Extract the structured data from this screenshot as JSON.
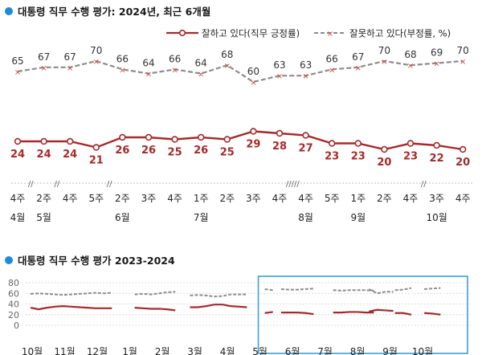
{
  "panel1": {
    "title": "대통령 직무 수행 평가: 2024년, 최근 6개월"
  },
  "panel2": {
    "title": "대통령 직무 수행 평가 2023-2024"
  },
  "colors": {
    "approve": "#a52a2a",
    "disapprove": "#8c8c8c",
    "accent": "#1c8bd8",
    "box": "#3aa0e0"
  },
  "chart_data": [
    {
      "type": "line",
      "title": "대통령 직무 수행 평가: 2024년, 최근 6개월",
      "x": [
        "4주",
        "2주",
        "4주",
        "5주",
        "2주",
        "3주",
        "4주",
        "1주",
        "2주",
        "3주",
        "4주",
        "4주",
        "5주",
        "1주",
        "2주",
        "4주",
        "3주",
        "4주"
      ],
      "months": [
        {
          "label": "4월",
          "index": 0
        },
        {
          "label": "5월",
          "index": 1
        },
        {
          "label": "6월",
          "index": 4
        },
        {
          "label": "7월",
          "index": 7
        },
        {
          "label": "8월",
          "index": 11
        },
        {
          "label": "9월",
          "index": 13
        },
        {
          "label": "10월",
          "index": 16
        }
      ],
      "breaks": [
        {
          "after": 0,
          "mark": "//"
        },
        {
          "after": 1,
          "mark": "//"
        },
        {
          "after": 3,
          "mark": "//"
        },
        {
          "after": 10,
          "mark": "/////"
        },
        {
          "after": 15,
          "mark": "//"
        }
      ],
      "series": [
        {
          "name": "잘하고 있다(직무 긍정률)",
          "values": [
            24,
            24,
            24,
            21,
            26,
            26,
            25,
            26,
            25,
            29,
            28,
            27,
            23,
            23,
            20,
            23,
            22,
            20
          ]
        },
        {
          "name": "잘못하고 있다(부정률, %)",
          "values": [
            65,
            67,
            67,
            70,
            66,
            64,
            66,
            64,
            68,
            60,
            63,
            63,
            66,
            67,
            70,
            68,
            69,
            70
          ]
        }
      ],
      "grid": false,
      "legend": "top-right"
    },
    {
      "type": "line",
      "title": "대통령 직무 수행 평가 2023-2024",
      "yticks": [
        0,
        20,
        40,
        60,
        80
      ],
      "ylim": [
        0,
        80
      ],
      "months": [
        "10월",
        "11월",
        "12월",
        "1월",
        "2월",
        "3월",
        "4월",
        "5월",
        "6월",
        "7월",
        "8월",
        "9월",
        "10월"
      ],
      "segments": [
        {
          "start": 0.1,
          "approve": [
            33,
            30,
            33,
            35,
            36,
            35,
            34,
            33,
            32,
            32,
            32
          ],
          "disapprove": [
            59,
            60,
            59,
            58,
            57,
            58,
            59,
            60,
            61,
            60,
            61
          ]
        },
        {
          "start": 3.3,
          "approve": [
            33,
            32,
            31,
            31,
            30,
            28
          ],
          "disapprove": [
            58,
            59,
            58,
            60,
            62,
            63
          ]
        },
        {
          "start": 5.0,
          "approve": [
            34,
            34,
            36,
            39,
            39,
            36,
            35,
            34
          ],
          "disapprove": [
            56,
            57,
            56,
            54,
            55,
            58,
            58,
            58
          ]
        },
        {
          "start": 7.3,
          "approve": [
            23,
            25
          ],
          "disapprove": [
            68,
            66
          ]
        },
        {
          "start": 7.8,
          "approve": [
            24,
            24,
            24,
            23,
            21
          ],
          "disapprove": [
            68,
            67,
            67,
            68,
            69
          ]
        },
        {
          "start": 9.4,
          "approve": [
            24,
            24,
            25,
            25,
            24,
            24
          ],
          "disapprove": [
            66,
            65,
            66,
            66,
            66,
            65
          ]
        },
        {
          "start": 10.5,
          "approve": [
            26,
            29,
            28,
            27
          ],
          "disapprove": [
            68,
            60,
            63,
            63
          ]
        },
        {
          "start": 11.3,
          "approve": [
            23,
            23,
            20
          ],
          "disapprove": [
            66,
            67,
            70
          ]
        },
        {
          "start": 12.2,
          "approve": [
            23,
            22,
            20
          ],
          "disapprove": [
            68,
            69,
            70
          ]
        }
      ],
      "grid": true
    }
  ]
}
